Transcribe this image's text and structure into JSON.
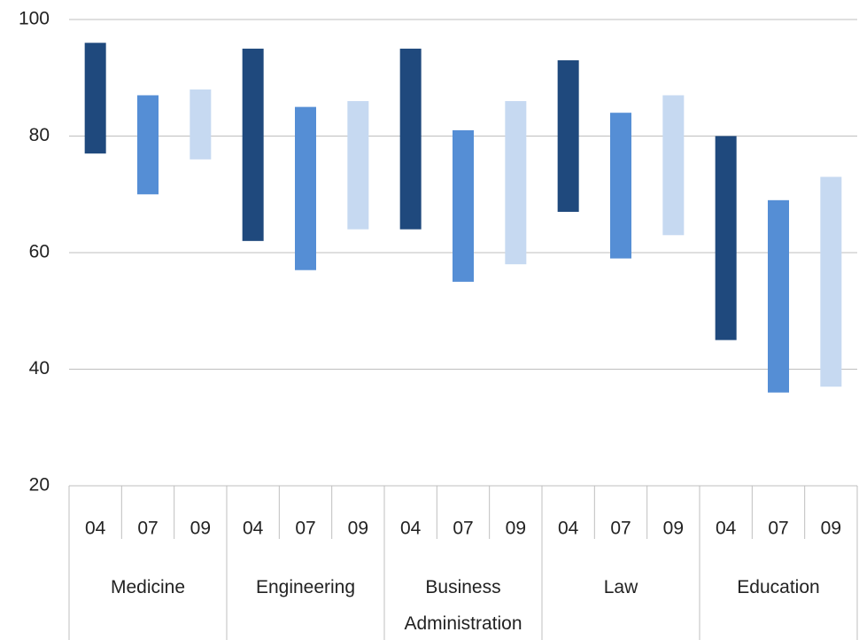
{
  "chart_data": {
    "type": "bar",
    "categories": [
      "Medicine",
      "Engineering",
      "Business Administration",
      "Law",
      "Education"
    ],
    "series": [
      {
        "name": "04",
        "color": "#1f497d",
        "low": [
          77,
          62,
          64,
          67,
          45
        ],
        "high": [
          96,
          95,
          95,
          93,
          80
        ]
      },
      {
        "name": "07",
        "color": "#558ed5",
        "low": [
          70,
          57,
          55,
          59,
          36
        ],
        "high": [
          87,
          85,
          81,
          84,
          69
        ]
      },
      {
        "name": "09",
        "color": "#c6d9f1",
        "low": [
          76,
          64,
          58,
          63,
          37
        ],
        "high": [
          88,
          86,
          86,
          87,
          73
        ]
      }
    ],
    "ylim": [
      20,
      100
    ],
    "yticks": [
      20,
      40,
      60,
      80,
      100
    ],
    "grid": true
  }
}
